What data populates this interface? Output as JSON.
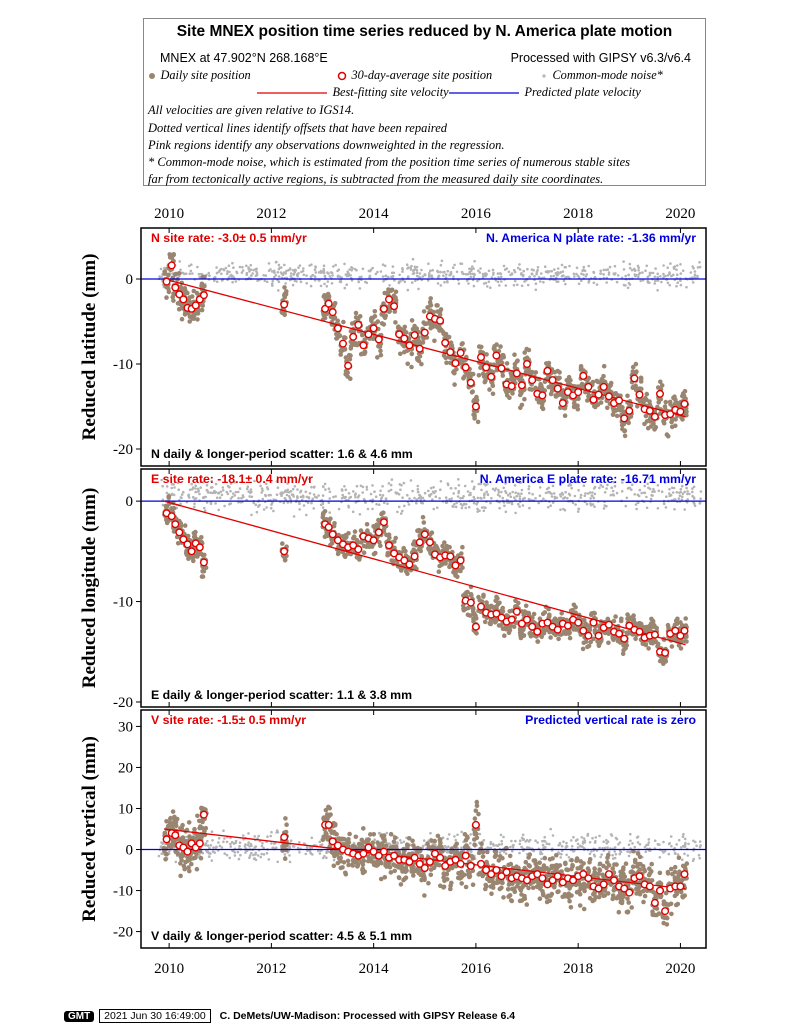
{
  "legend": {
    "title": "Site MNEX position time series reduced by N. America plate motion",
    "site_line": "MNEX at 47.902°N 268.168°E",
    "processed_line": "Processed with GIPSY v6.3/v6.4",
    "items": {
      "daily": "Daily site position",
      "avg30": "30-day-average site position",
      "cmn": "Common-mode noise*",
      "best_fit": "Best-fitting site velocity",
      "predicted": "Predicted plate velocity"
    },
    "notes": [
      "All velocities are given relative to IGS14.",
      "Dotted vertical lines identify offsets that have been repaired",
      "Pink regions identify any observations downweighted in the regression.",
      "* Common-mode noise, which is estimated from the position time series of numerous stable sites",
      "far from tectonically active regions, is subtracted from the measured daily site coordinates."
    ]
  },
  "colors": {
    "daily": "#9a8670",
    "avg30": "#e00000",
    "fit": "#e00000",
    "plate": "#0000dd",
    "cmn": "#b4b4b4"
  },
  "chart_data": [
    {
      "type": "scatter",
      "component": "N",
      "ylabel": "Reduced latitude (mm)",
      "xlim": [
        2009.45,
        2020.5
      ],
      "ylim": [
        -22,
        6
      ],
      "yticks": [
        0,
        -10,
        -20
      ],
      "xticks": [
        2010,
        2012,
        2014,
        2016,
        2018,
        2020
      ],
      "rate_label": "N site rate:  -3.0± 0.5 mm/yr",
      "plate_label": "N. America N plate rate: -1.36 mm/yr",
      "scatter_label": "N daily & longer-period scatter:   1.6 &   4.6 mm",
      "fit_line": {
        "x": [
          2009.9,
          2020.1
        ],
        "y": [
          0.0,
          -16.2
        ]
      },
      "predicted_line": {
        "x": [
          2009.45,
          2020.5
        ],
        "y": [
          0,
          0
        ]
      },
      "avg30": {
        "x": [
          2009.95,
          2010.05,
          2010.12,
          2010.2,
          2010.28,
          2010.36,
          2010.44,
          2010.52,
          2010.6,
          2010.68,
          2012.25,
          2013.05,
          2013.12,
          2013.2,
          2013.3,
          2013.4,
          2013.5,
          2013.6,
          2013.7,
          2013.8,
          2013.9,
          2014.0,
          2014.1,
          2014.2,
          2014.3,
          2014.4,
          2014.5,
          2014.6,
          2014.7,
          2014.8,
          2014.9,
          2015.0,
          2015.1,
          2015.2,
          2015.3,
          2015.4,
          2015.5,
          2015.6,
          2015.7,
          2015.8,
          2015.9,
          2016.0,
          2016.1,
          2016.2,
          2016.3,
          2016.4,
          2016.5,
          2016.6,
          2016.7,
          2016.8,
          2016.9,
          2017.0,
          2017.1,
          2017.2,
          2017.3,
          2017.4,
          2017.5,
          2017.6,
          2017.7,
          2017.8,
          2017.9,
          2018.0,
          2018.1,
          2018.2,
          2018.3,
          2018.4,
          2018.5,
          2018.6,
          2018.7,
          2018.8,
          2018.9,
          2019.0,
          2019.1,
          2019.2,
          2019.3,
          2019.4,
          2019.5,
          2019.6,
          2019.7,
          2019.8,
          2019.9,
          2020.0,
          2020.08
        ],
        "y": [
          -0.3,
          1.6,
          -1.0,
          -1.8,
          -2.4,
          -3.4,
          -3.5,
          -3.1,
          -2.4,
          -1.9,
          -3.0,
          -3.5,
          -2.9,
          -3.9,
          -5.8,
          -7.6,
          -10.2,
          -6.8,
          -5.4,
          -7.8,
          -6.5,
          -5.8,
          -7.1,
          -3.5,
          -2.4,
          -3.2,
          -6.5,
          -7.0,
          -7.8,
          -6.6,
          -8.2,
          -6.3,
          -4.4,
          -4.7,
          -4.9,
          -7.5,
          -8.6,
          -9.9,
          -8.7,
          -10.4,
          -12.2,
          -15.0,
          -9.2,
          -10.4,
          -11.5,
          -9.0,
          -10.5,
          -12.4,
          -12.6,
          -11.1,
          -12.5,
          -10.0,
          -11.9,
          -13.5,
          -13.7,
          -10.8,
          -11.9,
          -12.9,
          -14.6,
          -13.3,
          -13.7,
          -13.3,
          -11.4,
          -12.7,
          -14.2,
          -13.6,
          -12.7,
          -13.8,
          -14.6,
          -14.3,
          -16.4,
          -15.5,
          -11.7,
          -13.6,
          -15.3,
          -15.5,
          -16.2,
          -13.5,
          -16.0,
          -15.9,
          -15.4,
          -15.6,
          -14.7
        ]
      }
    },
    {
      "type": "scatter",
      "component": "E",
      "ylabel": "Reduced longitude (mm)",
      "xlim": [
        2009.45,
        2020.5
      ],
      "ylim": [
        -20.5,
        3.2
      ],
      "yticks": [
        0,
        -10,
        -20
      ],
      "xticks": [
        2010,
        2012,
        2014,
        2016,
        2018,
        2020
      ],
      "rate_label": "E site rate:  -18.1± 0.4 mm/yr",
      "plate_label": "N. America E plate rate: -16.71 mm/yr",
      "scatter_label": "E daily & longer-period scatter:   1.1 &   3.8 mm",
      "fit_line": {
        "x": [
          2009.9,
          2020.1
        ],
        "y": [
          0.0,
          -14.3
        ]
      },
      "predicted_line": {
        "x": [
          2009.45,
          2020.5
        ],
        "y": [
          0,
          0
        ]
      },
      "avg30": {
        "x": [
          2009.95,
          2010.05,
          2010.12,
          2010.2,
          2010.28,
          2010.36,
          2010.44,
          2010.52,
          2010.6,
          2010.68,
          2012.25,
          2013.05,
          2013.12,
          2013.2,
          2013.3,
          2013.4,
          2013.5,
          2013.6,
          2013.7,
          2013.8,
          2013.9,
          2014.0,
          2014.1,
          2014.2,
          2014.3,
          2014.4,
          2014.5,
          2014.6,
          2014.7,
          2014.8,
          2014.9,
          2015.0,
          2015.1,
          2015.2,
          2015.3,
          2015.4,
          2015.5,
          2015.6,
          2015.7,
          2015.8,
          2015.9,
          2016.0,
          2016.1,
          2016.2,
          2016.3,
          2016.4,
          2016.5,
          2016.6,
          2016.7,
          2016.8,
          2016.9,
          2017.0,
          2017.1,
          2017.2,
          2017.3,
          2017.4,
          2017.5,
          2017.6,
          2017.7,
          2017.8,
          2017.9,
          2018.0,
          2018.1,
          2018.2,
          2018.3,
          2018.4,
          2018.5,
          2018.6,
          2018.7,
          2018.8,
          2018.9,
          2019.0,
          2019.1,
          2019.2,
          2019.3,
          2019.4,
          2019.5,
          2019.6,
          2019.7,
          2019.8,
          2019.9,
          2020.0,
          2020.08
        ],
        "y": [
          -1.2,
          -1.5,
          -2.3,
          -3.1,
          -3.8,
          -4.3,
          -5.0,
          -4.2,
          -4.6,
          -6.1,
          -5.0,
          -2.3,
          -2.6,
          -3.3,
          -3.9,
          -4.3,
          -4.6,
          -4.4,
          -4.8,
          -3.5,
          -3.7,
          -3.9,
          -3.1,
          -2.1,
          -4.4,
          -5.2,
          -5.6,
          -5.9,
          -6.3,
          -5.5,
          -4.1,
          -3.3,
          -4.1,
          -5.3,
          -5.6,
          -5.4,
          -5.5,
          -6.4,
          -5.9,
          -9.9,
          -10.1,
          -12.5,
          -10.5,
          -11.1,
          -11.3,
          -11.2,
          -11.6,
          -12.0,
          -11.8,
          -11.0,
          -12.2,
          -11.8,
          -12.5,
          -13.0,
          -12.2,
          -12.1,
          -12.5,
          -12.8,
          -12.2,
          -12.4,
          -11.8,
          -12.1,
          -12.9,
          -13.4,
          -12.1,
          -13.4,
          -12.6,
          -12.3,
          -13.0,
          -13.2,
          -13.7,
          -12.4,
          -12.8,
          -13.0,
          -13.6,
          -13.4,
          -13.3,
          -15.0,
          -15.1,
          -13.2,
          -12.9,
          -13.4,
          -12.9
        ]
      }
    },
    {
      "type": "scatter",
      "component": "V",
      "ylabel": "Reduced vertical (mm)",
      "xlim": [
        2009.45,
        2020.5
      ],
      "ylim": [
        -24,
        34
      ],
      "yticks": [
        30,
        20,
        10,
        0,
        -10,
        -20
      ],
      "xticks": [
        2010,
        2012,
        2014,
        2016,
        2018,
        2020
      ],
      "rate_label": "V site rate:  -1.5± 0.5 mm/yr",
      "plate_label": "Predicted vertical rate is zero",
      "scatter_label": "V daily & longer-period scatter:   4.5 &   5.1 mm",
      "fit_line": {
        "x": [
          2009.9,
          2020.1
        ],
        "y": [
          5.0,
          -9.6
        ]
      },
      "predicted_line": {
        "x": [
          2009.45,
          2020.5
        ],
        "y": [
          0,
          0
        ]
      },
      "avg30": {
        "x": [
          2009.95,
          2010.05,
          2010.12,
          2010.2,
          2010.28,
          2010.36,
          2010.44,
          2010.52,
          2010.6,
          2010.68,
          2012.25,
          2013.05,
          2013.12,
          2013.2,
          2013.3,
          2013.4,
          2013.5,
          2013.6,
          2013.7,
          2013.8,
          2013.9,
          2014.0,
          2014.1,
          2014.2,
          2014.3,
          2014.4,
          2014.5,
          2014.6,
          2014.7,
          2014.8,
          2014.9,
          2015.0,
          2015.1,
          2015.2,
          2015.3,
          2015.4,
          2015.5,
          2015.6,
          2015.7,
          2015.8,
          2015.9,
          2016.0,
          2016.1,
          2016.2,
          2016.3,
          2016.4,
          2016.5,
          2016.6,
          2016.7,
          2016.8,
          2016.9,
          2017.0,
          2017.1,
          2017.2,
          2017.3,
          2017.4,
          2017.5,
          2017.6,
          2017.7,
          2017.8,
          2017.9,
          2018.0,
          2018.1,
          2018.2,
          2018.3,
          2018.4,
          2018.5,
          2018.6,
          2018.7,
          2018.8,
          2018.9,
          2019.0,
          2019.1,
          2019.2,
          2019.3,
          2019.4,
          2019.5,
          2019.6,
          2019.7,
          2019.8,
          2019.9,
          2020.0,
          2020.08
        ],
        "y": [
          2.5,
          4.0,
          3.5,
          1.0,
          0.5,
          -0.5,
          1.5,
          0.5,
          1.5,
          8.5,
          3.0,
          6.0,
          6.0,
          2.0,
          1.0,
          0.0,
          -0.5,
          -1.0,
          -1.5,
          -1.0,
          0.5,
          -0.5,
          -1.5,
          -0.5,
          -2.0,
          -1.5,
          -2.5,
          -2.5,
          -3.0,
          -2.0,
          -3.5,
          -4.5,
          -3.0,
          -1.0,
          -2.0,
          -4.0,
          -3.0,
          -2.5,
          -3.5,
          -1.5,
          -4.0,
          6.0,
          -3.5,
          -5.0,
          -6.0,
          -5.0,
          -6.5,
          -5.5,
          -7.0,
          -6.5,
          -7.0,
          -7.5,
          -6.5,
          -6.0,
          -7.0,
          -8.5,
          -7.5,
          -6.5,
          -8.0,
          -7.0,
          -7.5,
          -6.5,
          -6.0,
          -7.0,
          -9.0,
          -9.5,
          -8.5,
          -6.0,
          -7.5,
          -9.0,
          -9.5,
          -10.5,
          -7.0,
          -6.5,
          -8.5,
          -9.0,
          -13.0,
          -10.0,
          -15.0,
          -9.5,
          -9.0,
          -9.0,
          -6.0
        ]
      }
    }
  ],
  "footer": {
    "logo": "GMT",
    "timestamp": "2021 Jun 30 16:49:00",
    "credit": "C. DeMets/UW-Madison: Processed with GIPSY Release 6.4"
  }
}
